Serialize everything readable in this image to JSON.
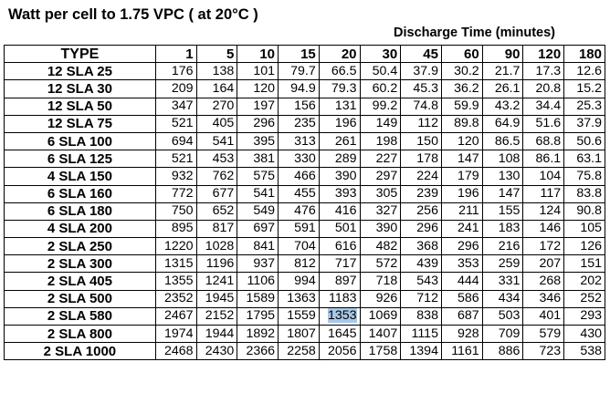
{
  "title": "Watt per cell to 1.75  VPC ( at 20°C )",
  "subtitle": "Discharge Time (minutes)",
  "table": {
    "type_header": "TYPE",
    "times": [
      "1",
      "5",
      "10",
      "15",
      "20",
      "30",
      "45",
      "60",
      "90",
      "120",
      "180"
    ],
    "rows": [
      {
        "model": "12 SLA 25",
        "values": [
          "176",
          "138",
          "101",
          "79.7",
          "66.5",
          "50.4",
          "37.9",
          "30.2",
          "21.7",
          "17.3",
          "12.6"
        ]
      },
      {
        "model": "12 SLA 30",
        "values": [
          "209",
          "164",
          "120",
          "94.9",
          "79.3",
          "60.2",
          "45.3",
          "36.2",
          "26.1",
          "20.8",
          "15.2"
        ]
      },
      {
        "model": "12 SLA 50",
        "values": [
          "347",
          "270",
          "197",
          "156",
          "131",
          "99.2",
          "74.8",
          "59.9",
          "43.2",
          "34.4",
          "25.3"
        ]
      },
      {
        "model": "12 SLA 75",
        "values": [
          "521",
          "405",
          "296",
          "235",
          "196",
          "149",
          "112",
          "89.8",
          "64.9",
          "51.6",
          "37.9"
        ]
      },
      {
        "model": "6 SLA 100",
        "values": [
          "694",
          "541",
          "395",
          "313",
          "261",
          "198",
          "150",
          "120",
          "86.5",
          "68.8",
          "50.6"
        ]
      },
      {
        "model": "6 SLA 125",
        "values": [
          "521",
          "453",
          "381",
          "330",
          "289",
          "227",
          "178",
          "147",
          "108",
          "86.1",
          "63.1"
        ]
      },
      {
        "model": "4 SLA 150",
        "values": [
          "932",
          "762",
          "575",
          "466",
          "390",
          "297",
          "224",
          "179",
          "130",
          "104",
          "75.8"
        ]
      },
      {
        "model": "6 SLA 160",
        "values": [
          "772",
          "677",
          "541",
          "455",
          "393",
          "305",
          "239",
          "196",
          "147",
          "117",
          "83.8"
        ]
      },
      {
        "model": "6 SLA 180",
        "values": [
          "750",
          "652",
          "549",
          "476",
          "416",
          "327",
          "256",
          "211",
          "155",
          "124",
          "90.8"
        ]
      },
      {
        "model": "4 SLA 200",
        "values": [
          "895",
          "817",
          "697",
          "591",
          "501",
          "390",
          "296",
          "241",
          "183",
          "146",
          "105"
        ]
      },
      {
        "model": "2 SLA 250",
        "values": [
          "1220",
          "1028",
          "841",
          "704",
          "616",
          "482",
          "368",
          "296",
          "216",
          "172",
          "126"
        ]
      },
      {
        "model": "2 SLA 300",
        "values": [
          "1315",
          "1196",
          "937",
          "812",
          "717",
          "572",
          "439",
          "353",
          "259",
          "207",
          "151"
        ]
      },
      {
        "model": "2 SLA 405",
        "values": [
          "1355",
          "1241",
          "1106",
          "994",
          "897",
          "718",
          "543",
          "444",
          "331",
          "268",
          "202"
        ]
      },
      {
        "model": "2 SLA 500",
        "values": [
          "2352",
          "1945",
          "1589",
          "1363",
          "1183",
          "926",
          "712",
          "586",
          "434",
          "346",
          "252"
        ]
      },
      {
        "model": "2 SLA 580",
        "values": [
          "2467",
          "2152",
          "1795",
          "1559",
          "1353",
          "1069",
          "838",
          "687",
          "503",
          "401",
          "293"
        ]
      },
      {
        "model": "2 SLA 800",
        "values": [
          "1974",
          "1944",
          "1892",
          "1807",
          "1645",
          "1407",
          "1115",
          "928",
          "709",
          "579",
          "430"
        ]
      },
      {
        "model": "2 SLA 1000",
        "values": [
          "2468",
          "2430",
          "2366",
          "2258",
          "2056",
          "1758",
          "1394",
          "1161",
          "886",
          "723",
          "538"
        ]
      }
    ],
    "highlight": {
      "row": 14,
      "col": 4,
      "color": "#a9c8e8"
    }
  }
}
